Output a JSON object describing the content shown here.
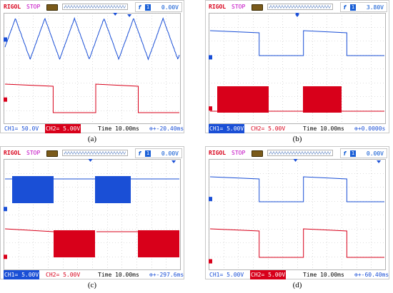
{
  "panels": [
    {
      "id": "a",
      "brand": "RIGOL",
      "status": "STOP",
      "trigger_edge": "f",
      "trigger_source": "1",
      "trigger_level": "0.00V",
      "ch1_scale": "CH1= 50.0V",
      "ch2_scale": "CH2= 5.00V",
      "timebase": "Time 10.00ms",
      "offset": "⊕+-20.40ms",
      "ch1_highlight": false,
      "ch2_highlight": true,
      "caption": "(a)",
      "ch1_waveform": "triangle",
      "ch2_waveform": "square",
      "ch1_level_frac": 0.24,
      "ch2_level_frac": 0.78,
      "trigger_marker_frac": 0.63,
      "tpos_marker_frac": 0.71
    },
    {
      "id": "b",
      "brand": "RIGOL",
      "status": "STOP",
      "trigger_edge": "f",
      "trigger_source": "1",
      "trigger_level": "3.80V",
      "ch1_scale": "CH1= 5.00V",
      "ch2_scale": "CH2= 5.00V",
      "timebase": "Time 10.00ms",
      "offset": "⊕+0.0000s",
      "ch1_highlight": true,
      "ch2_highlight": false,
      "caption": "(b)",
      "ch1_waveform": "square",
      "ch2_waveform": "burst",
      "ch1_level_frac": 0.4,
      "ch2_level_frac": 0.86,
      "trigger_marker_frac": 0.5,
      "tpos_marker_frac": 0.5
    },
    {
      "id": "c",
      "brand": "RIGOL",
      "status": "STOP",
      "trigger_edge": "f",
      "trigger_source": "1",
      "trigger_level": "0.00V",
      "ch1_scale": "CH1= 5.00V",
      "ch2_scale": "CH2= 5.00V",
      "timebase": "Time 10.00ms",
      "offset": "⊕+-297.6ms",
      "ch1_highlight": true,
      "ch2_highlight": false,
      "caption": "(c)",
      "ch1_waveform": "burst-blue",
      "ch2_waveform": "square-burst",
      "ch1_level_frac": 0.45,
      "ch2_level_frac": 0.88,
      "trigger_marker_frac": 0.49,
      "tpos_marker_frac": 0.96
    },
    {
      "id": "d",
      "brand": "RIGOL",
      "status": "STOP",
      "trigger_edge": "f",
      "trigger_source": "1",
      "trigger_level": "0.00V",
      "ch1_scale": "CH1= 5.00V",
      "ch2_scale": "CH2= 5.00V",
      "timebase": "Time 10.00ms",
      "offset": "⊕+-60.40ms",
      "ch1_highlight": false,
      "ch2_highlight": true,
      "caption": "(d)",
      "ch1_waveform": "square",
      "ch2_waveform": "square",
      "ch1_level_frac": 0.36,
      "ch2_level_frac": 0.92,
      "trigger_marker_frac": 0.49,
      "tpos_marker_frac": 0.96
    }
  ],
  "colors": {
    "ch1": "#1a4fd6",
    "ch2": "#d8001a",
    "brand": "#d8001a",
    "status": "#c000c0",
    "grid": "#c0c0c0"
  }
}
